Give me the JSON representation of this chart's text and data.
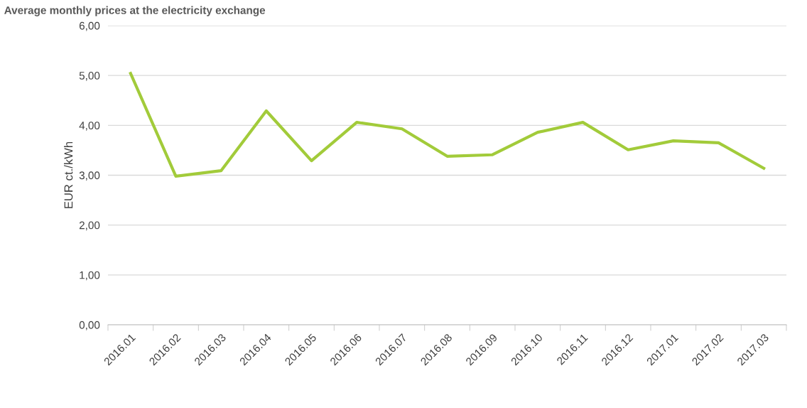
{
  "chart_data": {
    "type": "line",
    "title": "Average monthly prices at the electricity exchange",
    "ylabel": "EUR ct./kWh",
    "categories": [
      "2016.01",
      "2016.02",
      "2016.03",
      "2016.04",
      "2016.05",
      "2016.06",
      "2016.07",
      "2016.08",
      "2016.09",
      "2016.10",
      "2016.11",
      "2016.12",
      "2017.01",
      "2017.02",
      "2017.03"
    ],
    "series": [
      {
        "color": "#a2cb3a",
        "values": [
          5.04,
          2.98,
          3.09,
          4.29,
          3.29,
          4.06,
          3.93,
          3.38,
          3.41,
          3.86,
          4.06,
          3.51,
          3.69,
          3.65,
          3.14
        ]
      }
    ],
    "ylim": [
      0,
      6
    ],
    "yticks": [
      {
        "value": 0,
        "label": "0,00"
      },
      {
        "value": 1,
        "label": "1,00"
      },
      {
        "value": 2,
        "label": "2,00"
      },
      {
        "value": 3,
        "label": "3,00"
      },
      {
        "value": 4,
        "label": "4,00"
      },
      {
        "value": 5,
        "label": "5,00"
      },
      {
        "value": 6,
        "label": "6,00"
      }
    ],
    "grid": "y",
    "legend": false,
    "marker": "none",
    "line_style": "solid"
  }
}
